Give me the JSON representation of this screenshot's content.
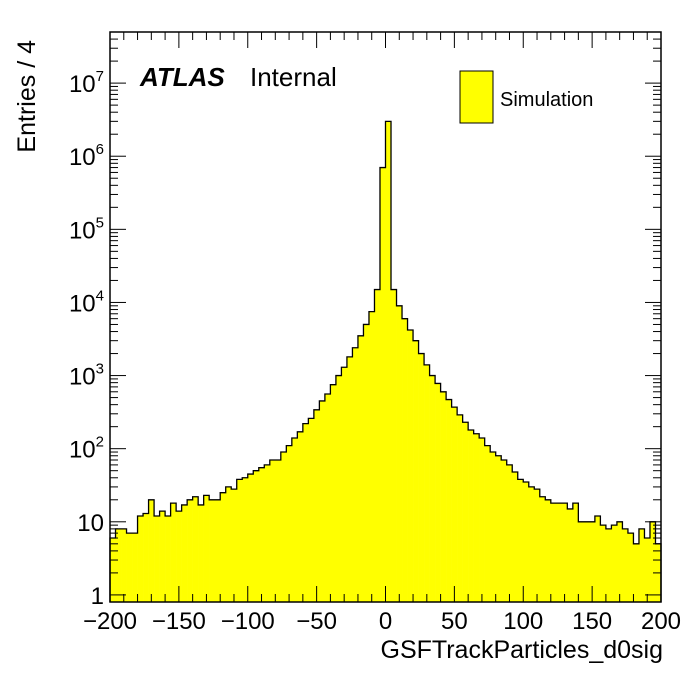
{
  "chart_data": {
    "type": "bar",
    "xlabel": "GSFTrackParticles_d0sig",
    "ylabel": "Entries / 4",
    "atlas_label": "ATLAS",
    "atlas_sublabel": "Internal",
    "xlim": [
      -200,
      200
    ],
    "ylim": [
      0.8,
      50000000
    ],
    "y_log_scale": true,
    "legend_placement": "top-right",
    "fill_color": "#ffff00",
    "edge_color": "#000000",
    "x_ticks": [
      -200,
      -150,
      -100,
      -50,
      0,
      50,
      100,
      150,
      200
    ],
    "x_tick_labels": [
      "−200",
      "−150",
      "−100",
      "−50",
      "0",
      "50",
      "100",
      "150",
      "200"
    ],
    "y_ticks": [
      1,
      10,
      100,
      1000,
      10000,
      100000,
      1000000,
      10000000
    ],
    "y_tick_labels": [
      {
        "base": "1",
        "exp": ""
      },
      {
        "base": "10",
        "exp": ""
      },
      {
        "base": "10",
        "exp": "2"
      },
      {
        "base": "10",
        "exp": "3"
      },
      {
        "base": "10",
        "exp": "4"
      },
      {
        "base": "10",
        "exp": "5"
      },
      {
        "base": "10",
        "exp": "6"
      },
      {
        "base": "10",
        "exp": "7"
      }
    ],
    "bin_width": 4,
    "series": [
      {
        "name": "Simulation",
        "bin_lows": [
          -200,
          -196,
          -192,
          -188,
          -184,
          -180,
          -176,
          -172,
          -168,
          -164,
          -160,
          -156,
          -152,
          -148,
          -144,
          -140,
          -136,
          -132,
          -128,
          -124,
          -120,
          -116,
          -112,
          -108,
          -104,
          -100,
          -96,
          -92,
          -88,
          -84,
          -80,
          -76,
          -72,
          -68,
          -64,
          -60,
          -56,
          -52,
          -48,
          -44,
          -40,
          -36,
          -32,
          -28,
          -24,
          -20,
          -16,
          -12,
          -8,
          -4,
          0,
          4,
          8,
          12,
          16,
          20,
          24,
          28,
          32,
          36,
          40,
          44,
          48,
          52,
          56,
          60,
          64,
          68,
          72,
          76,
          80,
          84,
          88,
          92,
          96,
          100,
          104,
          108,
          112,
          116,
          120,
          124,
          128,
          132,
          136,
          140,
          144,
          148,
          152,
          156,
          160,
          164,
          168,
          172,
          176,
          180,
          184,
          188,
          192,
          196
        ],
        "values": [
          6,
          8,
          8,
          7,
          7,
          12,
          13,
          20,
          12,
          14,
          12,
          18,
          14,
          17,
          20,
          22,
          17,
          23,
          20,
          20,
          25,
          30,
          28,
          38,
          40,
          45,
          50,
          55,
          60,
          70,
          70,
          90,
          110,
          140,
          170,
          220,
          260,
          340,
          450,
          560,
          750,
          1000,
          1300,
          1800,
          2400,
          3500,
          5000,
          7500,
          15000,
          700000,
          3000000,
          15000,
          9000,
          6000,
          4200,
          3000,
          2000,
          1400,
          1000,
          780,
          600,
          470,
          370,
          290,
          230,
          180,
          160,
          140,
          110,
          90,
          80,
          70,
          60,
          48,
          38,
          35,
          30,
          28,
          22,
          20,
          18,
          18,
          18,
          15,
          18,
          10,
          10,
          10,
          12,
          9,
          8,
          9,
          10,
          8,
          7,
          5,
          8,
          6,
          10,
          5
        ]
      }
    ]
  }
}
